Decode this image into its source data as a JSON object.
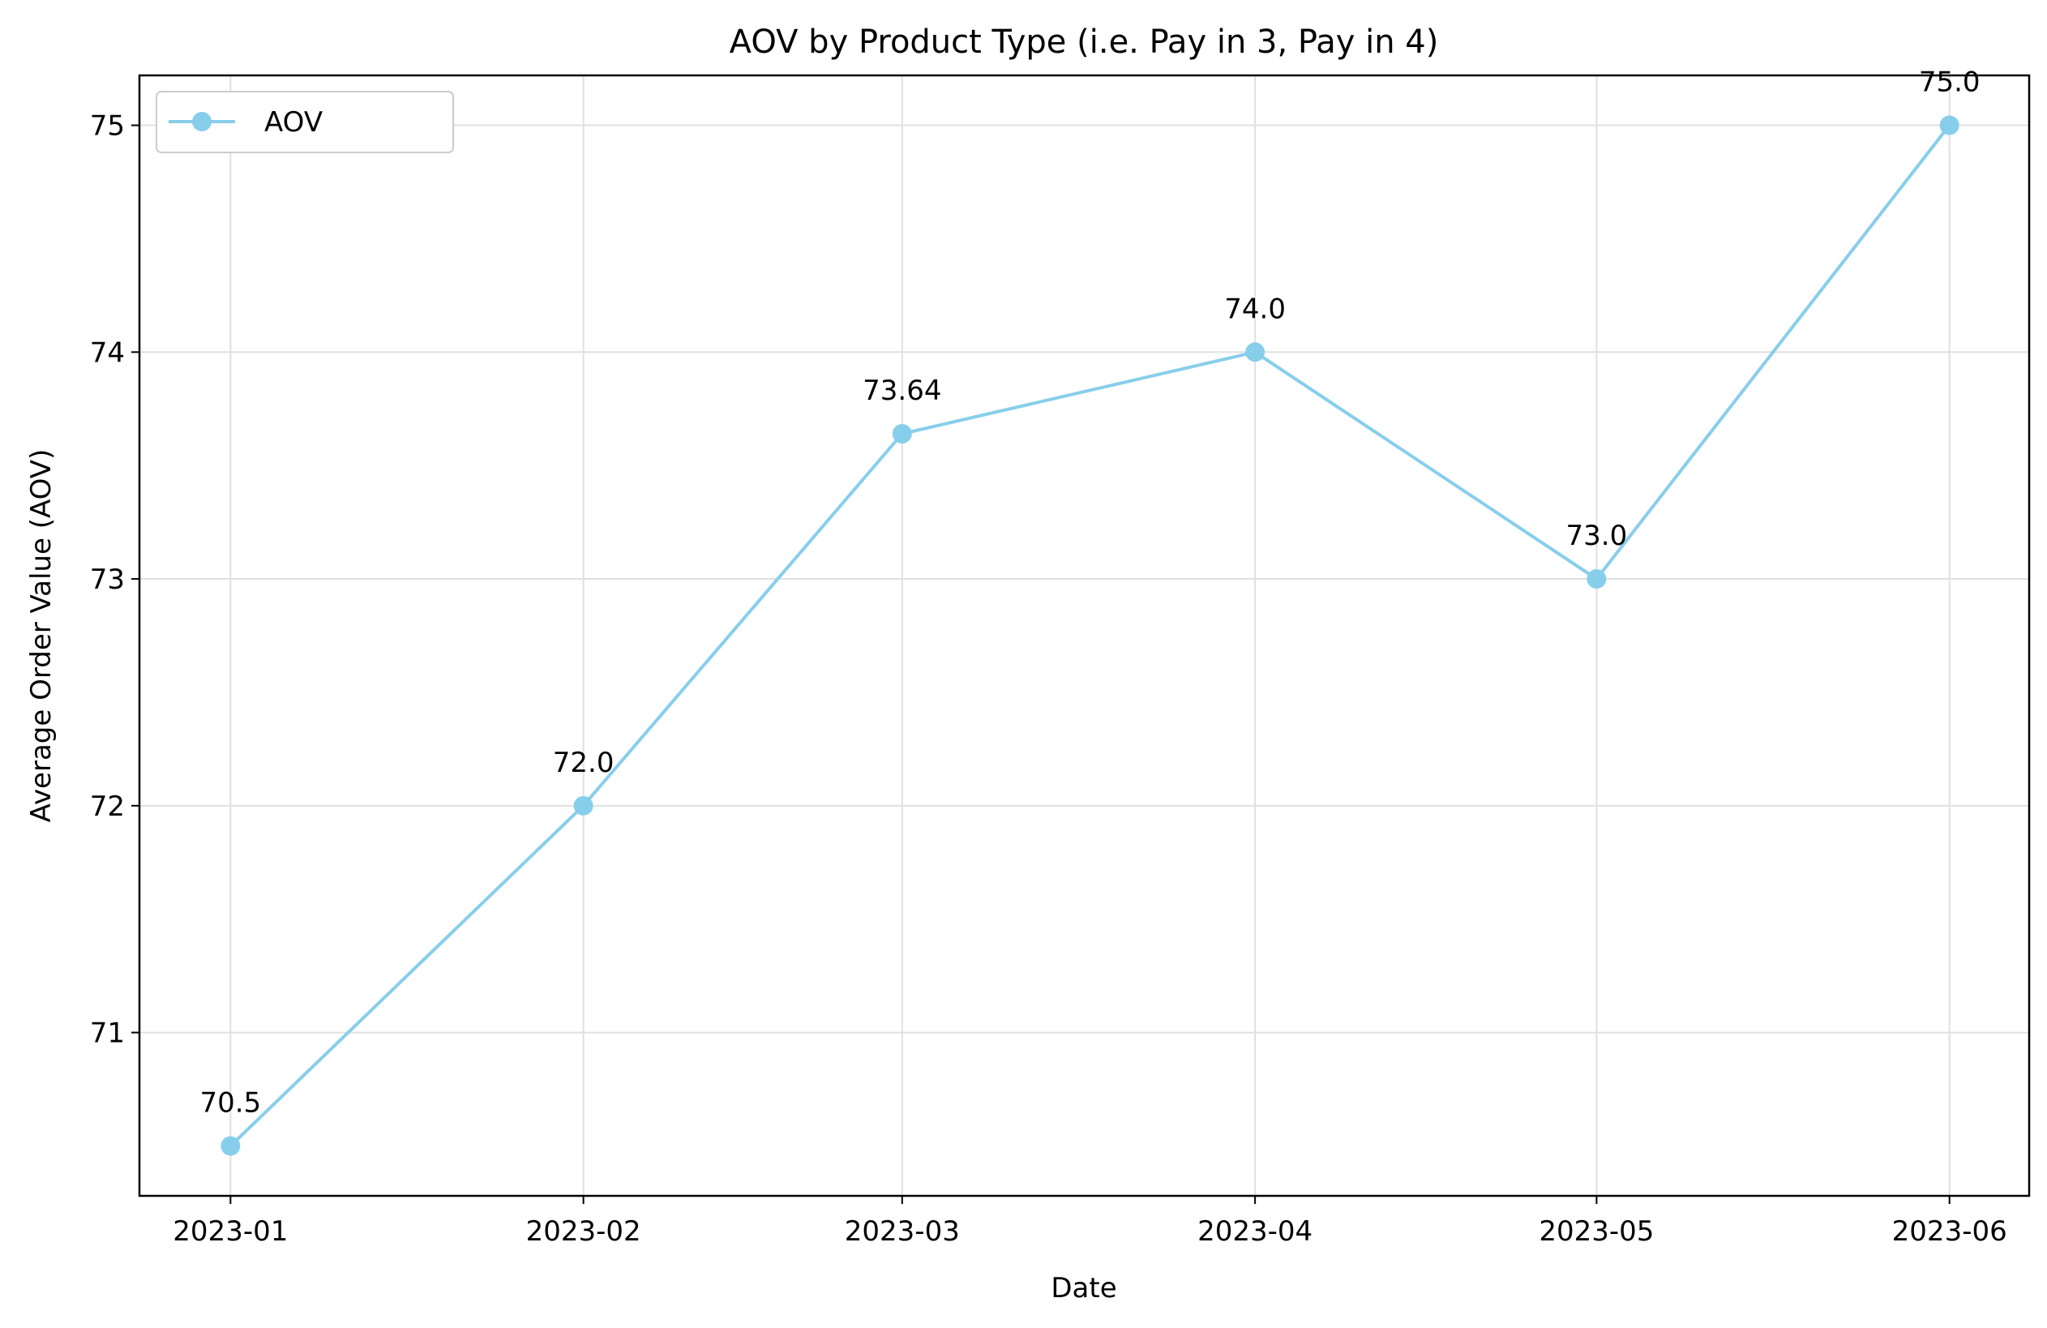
{
  "chart_data": {
    "type": "line",
    "title": "AOV by Product Type (i.e. Pay in 3, Pay in 4)",
    "xlabel": "Date",
    "ylabel": "Average Order Value (AOV)",
    "x": [
      "2023-01-01",
      "2023-02-01",
      "2023-03-01",
      "2023-04-01",
      "2023-05-01",
      "2023-06-01"
    ],
    "x_tick_labels": [
      "2023-01",
      "2023-02",
      "2023-03",
      "2023-04",
      "2023-05",
      "2023-06"
    ],
    "y_ticks": [
      71,
      72,
      73,
      74,
      75
    ],
    "ylim": [
      70.28,
      75.22
    ],
    "xlim": [
      "2022-12-24",
      "2023-06-08"
    ],
    "grid": true,
    "legend": {
      "placement": "top-left"
    },
    "series": [
      {
        "name": "AOV",
        "color": "#87ceeb",
        "marker": "circle",
        "values": [
          70.5,
          72.0,
          73.64,
          74.0,
          73.0,
          75.0
        ],
        "labels": [
          "70.5",
          "72.0",
          "73.64",
          "74.0",
          "73.0",
          "75.0"
        ]
      }
    ]
  }
}
